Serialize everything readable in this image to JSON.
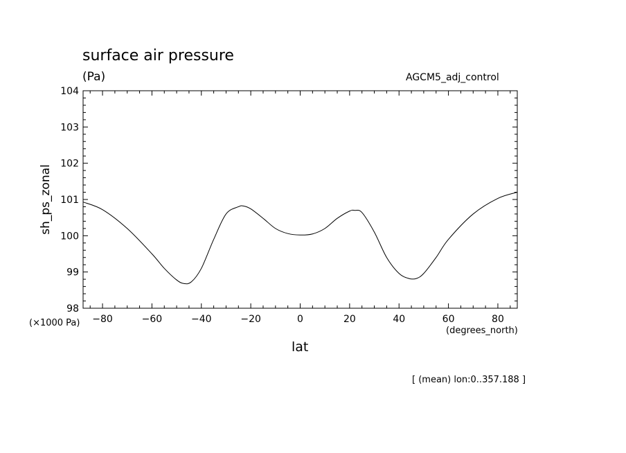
{
  "chart_data": {
    "type": "line",
    "title": "surface air pressure",
    "units_label": "(Pa)",
    "dataset_label": "AGCM5_adj_control",
    "ylabel": "sh_ps_zonal",
    "ylabel_scale": "(×1000 Pa)",
    "xlabel": "lat",
    "xlabel_units": "(degrees_north)",
    "subset_note": "[ (mean) lon:0..357.188 ]",
    "xlim": [
      -87.86,
      87.86
    ],
    "ylim": [
      98,
      104
    ],
    "x_ticks": [
      -80,
      -60,
      -40,
      -20,
      0,
      20,
      40,
      60,
      80
    ],
    "y_ticks": [
      98,
      99,
      100,
      101,
      102,
      103,
      104
    ],
    "x_tick_labels": [
      "−80",
      "−60",
      "−40",
      "−20",
      "0",
      "20",
      "40",
      "60",
      "80"
    ],
    "y_tick_labels": [
      "98",
      "99",
      "100",
      "101",
      "102",
      "103",
      "104"
    ],
    "grid": false,
    "series": [
      {
        "x": [
          -87.86,
          -80,
          -70,
          -60,
          -55,
          -50,
          -47,
          -44,
          -40,
          -35,
          -30,
          -25,
          -23,
          -20,
          -15,
          -10,
          -5,
          0,
          5,
          10,
          15,
          20,
          22,
          25,
          30,
          35,
          40,
          44,
          47,
          50,
          55,
          60,
          70,
          80,
          87.86
        ],
        "y": [
          100.93,
          100.72,
          100.2,
          99.5,
          99.1,
          98.78,
          98.68,
          98.73,
          99.1,
          99.9,
          100.6,
          100.8,
          100.82,
          100.74,
          100.48,
          100.2,
          100.06,
          100.02,
          100.05,
          100.2,
          100.48,
          100.68,
          100.7,
          100.64,
          100.1,
          99.4,
          98.96,
          98.82,
          98.82,
          98.96,
          99.4,
          99.9,
          100.6,
          101.03,
          101.2
        ]
      }
    ]
  }
}
